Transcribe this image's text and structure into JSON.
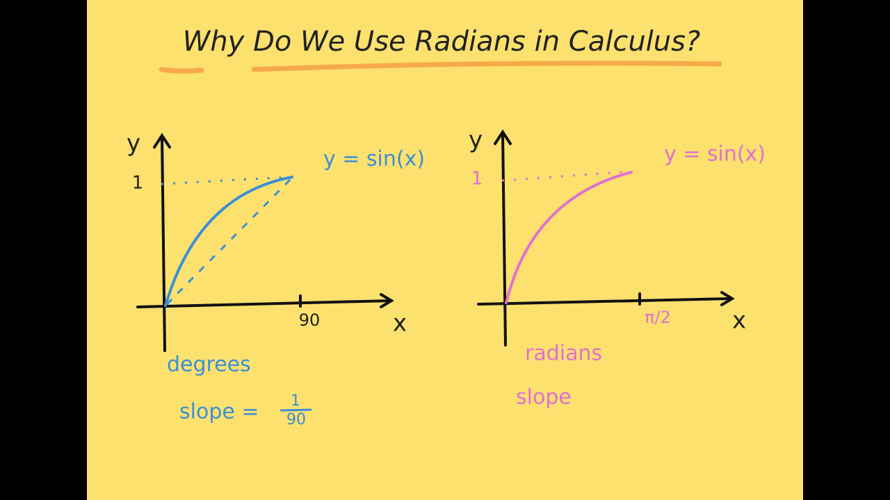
{
  "title": "Why Do We Use Radians in Calculus?",
  "panels": [
    {
      "y_axis": "y",
      "x_axis": "x",
      "y_tick": "1",
      "x_tick": "90",
      "curve_label": "y = sin(x)",
      "unit": "degrees",
      "slope": {
        "label": "slope =",
        "numerator": "1",
        "denominator": "90"
      }
    },
    {
      "y_axis": "y",
      "x_axis": "x",
      "y_tick": "1",
      "x_tick": "π/2",
      "curve_label": "y = sin(x)",
      "unit": "radians",
      "slope": {
        "label": "slope"
      }
    }
  ]
}
